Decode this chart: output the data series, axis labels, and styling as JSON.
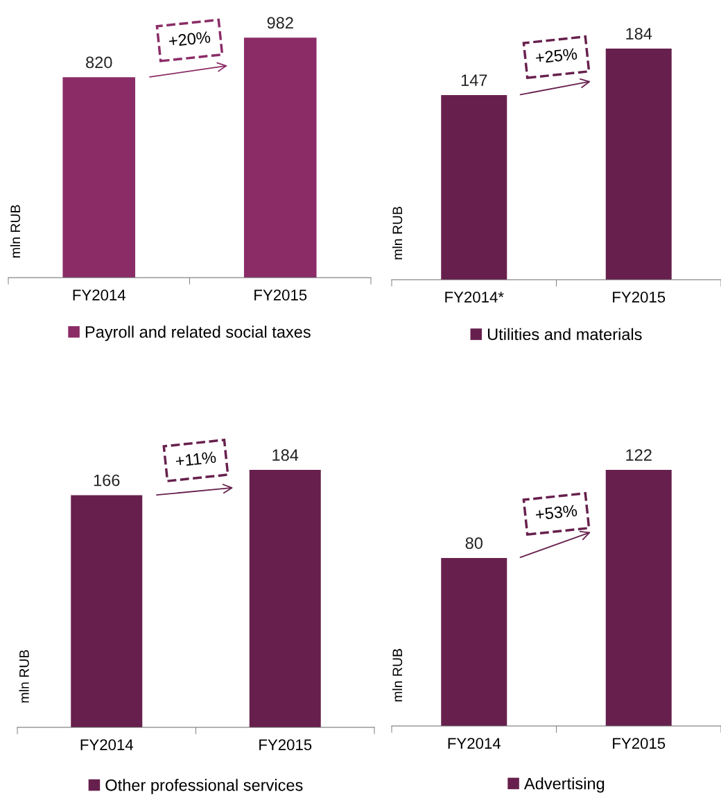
{
  "chart_data": [
    {
      "type": "bar",
      "ylabel": "mln RUB",
      "categories": [
        "FY2014",
        "FY2015"
      ],
      "series": [
        {
          "name": "Payroll and related social taxes",
          "color": "#8b2c67",
          "values": [
            820,
            982
          ]
        }
      ],
      "data_labels": true,
      "legend": "bottom",
      "annotations": [
        "+20%"
      ]
    },
    {
      "type": "bar",
      "ylabel": "mln RUB",
      "categories": [
        "FY2014*",
        "FY2015"
      ],
      "series": [
        {
          "name": "Utilities and materials",
          "color": "#67204d",
          "values": [
            147,
            184
          ]
        }
      ],
      "data_labels": true,
      "legend": "bottom",
      "annotations": [
        "+25%"
      ]
    },
    {
      "type": "bar",
      "ylabel": "mln RUB",
      "categories": [
        "FY2014",
        "FY2015"
      ],
      "series": [
        {
          "name": "Other professional services",
          "color": "#67204d",
          "values": [
            166,
            184
          ]
        }
      ],
      "data_labels": true,
      "legend": "bottom",
      "annotations": [
        "+11%"
      ]
    },
    {
      "type": "bar",
      "ylabel": "mln RUB",
      "categories": [
        "FY2014",
        "FY2015"
      ],
      "series": [
        {
          "name": "Advertising",
          "color": "#67204d",
          "values": [
            80,
            122
          ]
        }
      ],
      "data_labels": true,
      "legend": "bottom",
      "annotations": [
        "+53%"
      ]
    }
  ]
}
